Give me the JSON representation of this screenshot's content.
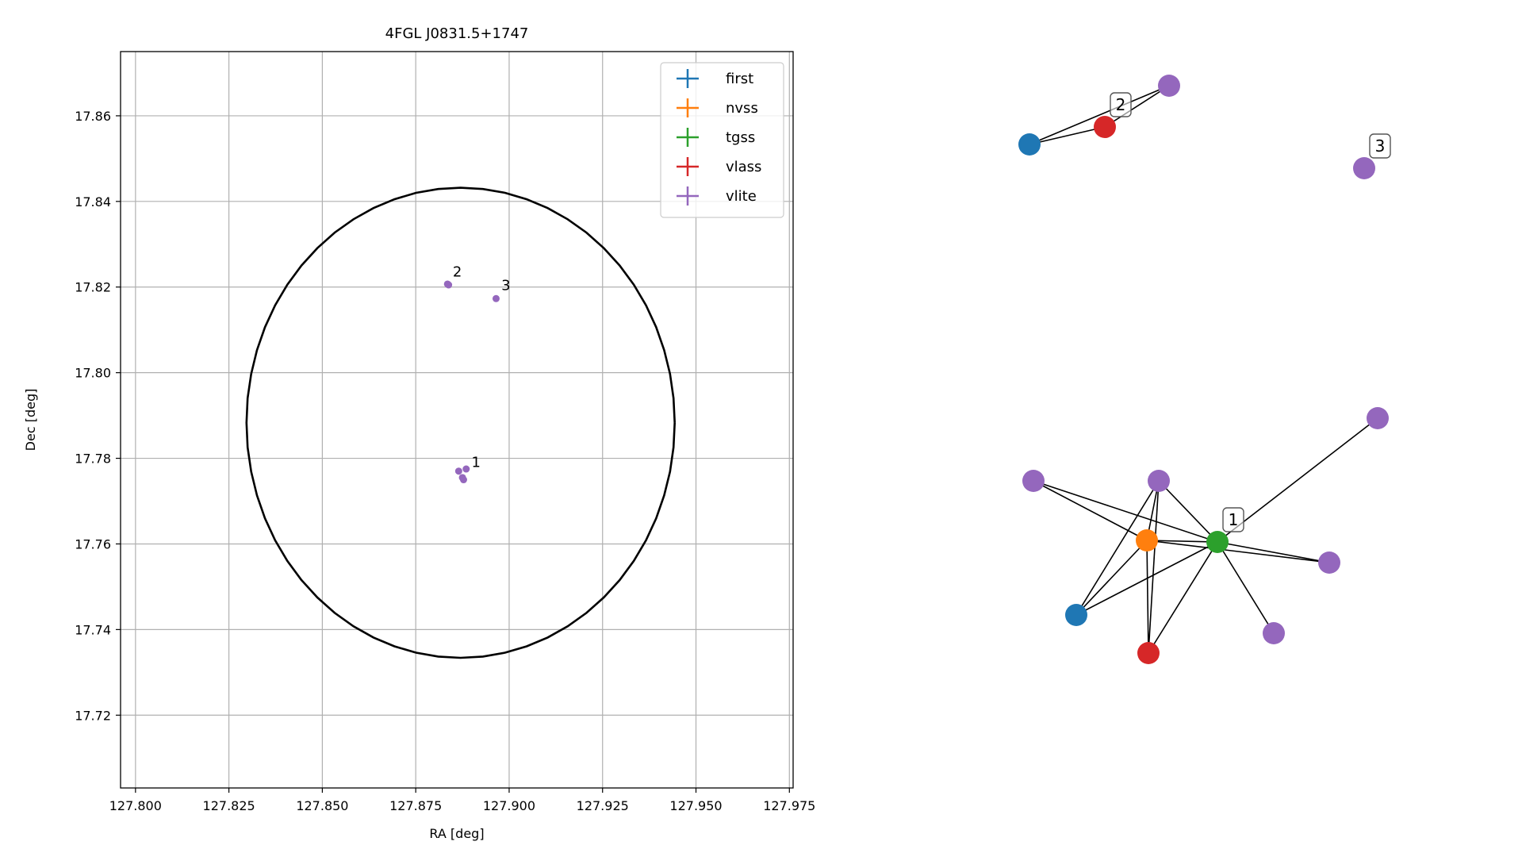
{
  "chart_data": [
    {
      "type": "scatter",
      "title": "4FGL J0831.5+1747",
      "xlabel": "RA [deg]",
      "ylabel": "Dec [deg]",
      "xlim": [
        127.796,
        127.976
      ],
      "ylim": [
        17.703,
        17.875
      ],
      "grid": true,
      "xticks": [
        127.8,
        127.825,
        127.85,
        127.875,
        127.9,
        127.925,
        127.95,
        127.975
      ],
      "xtick_labels": [
        "127.800",
        "127.825",
        "127.850",
        "127.875",
        "127.900",
        "127.925",
        "127.950",
        "127.975"
      ],
      "yticks": [
        17.72,
        17.74,
        17.76,
        17.78,
        17.8,
        17.82,
        17.84,
        17.86
      ],
      "ytick_labels": [
        "17.72",
        "17.74",
        "17.76",
        "17.78",
        "17.80",
        "17.82",
        "17.84",
        "17.86"
      ],
      "legend": {
        "placement": "top-right",
        "entries": [
          {
            "name": "first",
            "color": "#1f77b4"
          },
          {
            "name": "nvss",
            "color": "#ff7f0e"
          },
          {
            "name": "tgss",
            "color": "#2ca02c"
          },
          {
            "name": "vlass",
            "color": "#d62728"
          },
          {
            "name": "vlite",
            "color": "#9467bd"
          }
        ]
      },
      "series": [
        {
          "name": "vlite",
          "color": "#9467bd",
          "points": [
            [
              127.8865,
              17.777
            ],
            [
              127.8885,
              17.7775
            ],
            [
              127.8875,
              17.7755
            ],
            [
              127.8878,
              17.775
            ],
            [
              127.8835,
              17.8207
            ],
            [
              127.8838,
              17.8205
            ],
            [
              127.8965,
              17.8173
            ]
          ]
        }
      ],
      "ellipse": {
        "ra_center": 127.887,
        "dec_center": 17.7883,
        "ra_semi_axis": 0.0573,
        "dec_semi_axis": 0.0549,
        "color": "#000000"
      },
      "annotations": [
        {
          "text": "1",
          "x": 127.8895,
          "y": 17.778
        },
        {
          "text": "2",
          "x": 127.8845,
          "y": 17.8225
        },
        {
          "text": "3",
          "x": 127.8975,
          "y": 17.8193
        }
      ]
    },
    {
      "type": "network",
      "nodes": [
        {
          "id": "n1",
          "color": "#1f77b4"
        },
        {
          "id": "n2",
          "color": "#d62728"
        },
        {
          "id": "n3",
          "color": "#9467bd"
        },
        {
          "id": "n4",
          "color": "#9467bd"
        },
        {
          "id": "n5",
          "color": "#9467bd"
        },
        {
          "id": "n6",
          "color": "#9467bd"
        },
        {
          "id": "n7",
          "color": "#9467bd"
        },
        {
          "id": "n8",
          "color": "#ff7f0e"
        },
        {
          "id": "n9",
          "color": "#2ca02c"
        },
        {
          "id": "n10",
          "color": "#9467bd"
        },
        {
          "id": "n11",
          "color": "#1f77b4"
        },
        {
          "id": "n12",
          "color": "#9467bd"
        },
        {
          "id": "n13",
          "color": "#d62728"
        }
      ],
      "edges": [
        [
          "n1",
          "n2"
        ],
        [
          "n1",
          "n3"
        ],
        [
          "n2",
          "n3"
        ],
        [
          "n6",
          "n8"
        ],
        [
          "n6",
          "n9"
        ],
        [
          "n7",
          "n8"
        ],
        [
          "n7",
          "n9"
        ],
        [
          "n7",
          "n11"
        ],
        [
          "n7",
          "n13"
        ],
        [
          "n8",
          "n9"
        ],
        [
          "n8",
          "n10"
        ],
        [
          "n8",
          "n11"
        ],
        [
          "n8",
          "n13"
        ],
        [
          "n9",
          "n5"
        ],
        [
          "n9",
          "n10"
        ],
        [
          "n9",
          "n11"
        ],
        [
          "n9",
          "n12"
        ],
        [
          "n9",
          "n13"
        ]
      ],
      "labels": [
        {
          "text": "2",
          "node": "n2"
        },
        {
          "text": "3",
          "node": "n4"
        },
        {
          "text": "1",
          "node": "n9"
        }
      ]
    }
  ]
}
